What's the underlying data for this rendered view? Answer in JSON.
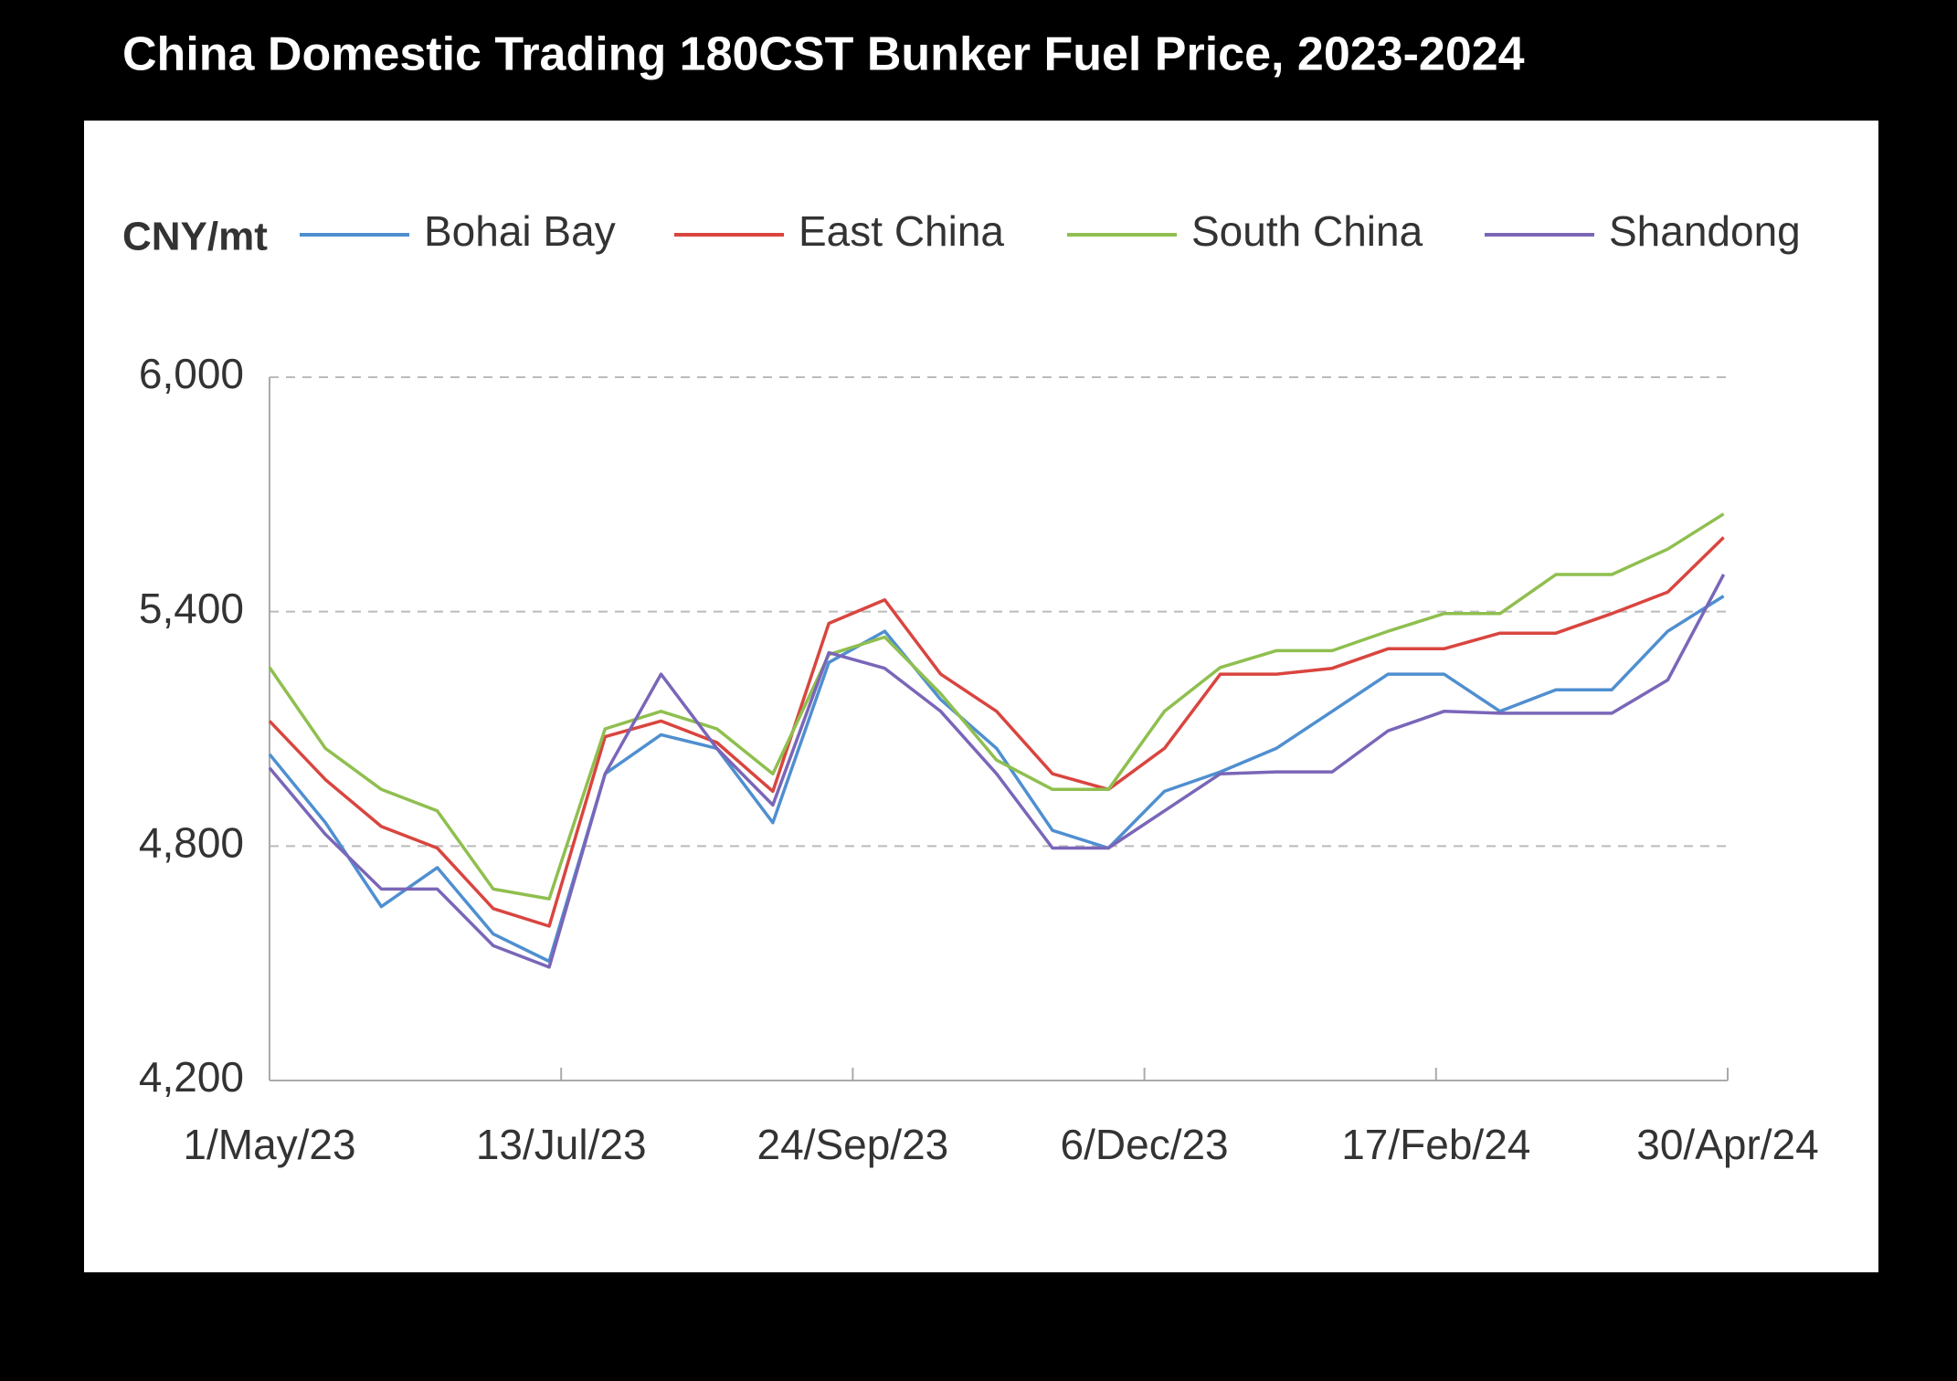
{
  "chart_data": {
    "type": "line",
    "title": "China Domestic Trading 180CST Bunker Fuel Price, 2023-2024",
    "y_label": "CNY/mt",
    "x": [
      "2023-05-01",
      "2023-05-15",
      "2023-05-29",
      "2023-06-12",
      "2023-06-26",
      "2023-07-10",
      "2023-07-24",
      "2023-08-07",
      "2023-08-21",
      "2023-09-04",
      "2023-09-18",
      "2023-10-02",
      "2023-10-16",
      "2023-10-30",
      "2023-11-13",
      "2023-11-27",
      "2023-12-11",
      "2023-12-25",
      "2024-01-08",
      "2024-01-22",
      "2024-02-05",
      "2024-02-19",
      "2024-03-04",
      "2024-03-18",
      "2024-04-01",
      "2024-04-15",
      "2024-04-29"
    ],
    "series": [
      {
        "name": "Bohai Bay",
        "color": "#4f8fd0",
        "values": [
          5035,
          4860,
          4645,
          4745,
          4575,
          4505,
          4985,
          5085,
          5050,
          4860,
          5270,
          5350,
          5175,
          5050,
          4840,
          4795,
          4940,
          4990,
          5050,
          5145,
          5240,
          5240,
          5145,
          5200,
          5200,
          5350,
          5440
        ]
      },
      {
        "name": "East China",
        "color": "#d9453f",
        "values": [
          5120,
          4970,
          4850,
          4795,
          4640,
          4595,
          5080,
          5120,
          5065,
          4940,
          5370,
          5430,
          5240,
          5145,
          4985,
          4945,
          5050,
          5240,
          5240,
          5255,
          5305,
          5305,
          5345,
          5345,
          5395,
          5450,
          5590
        ]
      },
      {
        "name": "South China",
        "color": "#8fbf4f",
        "values": [
          5257,
          5050,
          4945,
          4890,
          4690,
          4665,
          5100,
          5145,
          5100,
          4985,
          5290,
          5335,
          5190,
          5020,
          4945,
          4945,
          5145,
          5257,
          5300,
          5300,
          5350,
          5395,
          5395,
          5495,
          5495,
          5560,
          5650
        ]
      },
      {
        "name": "Shandong",
        "color": "#7a66b8",
        "values": [
          5000,
          4830,
          4690,
          4690,
          4545,
          4490,
          4985,
          5240,
          5050,
          4905,
          5295,
          5255,
          5145,
          4985,
          4795,
          4795,
          4890,
          4985,
          4990,
          4990,
          5095,
          5145,
          5140,
          5140,
          5140,
          5225,
          5495
        ]
      }
    ],
    "xlim": [
      "2023-05-01",
      "2024-04-30"
    ],
    "xticks": [
      {
        "value": "2023-05-01",
        "label": "1/May/23"
      },
      {
        "value": "2023-07-13",
        "label": "13/Jul/23"
      },
      {
        "value": "2023-09-24",
        "label": "24/Sep/23"
      },
      {
        "value": "2023-12-06",
        "label": "6/Dec/23"
      },
      {
        "value": "2024-02-17",
        "label": "17/Feb/24"
      },
      {
        "value": "2024-04-30",
        "label": "30/Apr/24"
      }
    ],
    "ylim": [
      4200,
      6000
    ],
    "yticks": [
      {
        "value": 4200,
        "label": "4,200"
      },
      {
        "value": 4800,
        "label": "4,800"
      },
      {
        "value": 5400,
        "label": "5,400"
      },
      {
        "value": 6000,
        "label": "6,000"
      }
    ],
    "grid": true
  }
}
